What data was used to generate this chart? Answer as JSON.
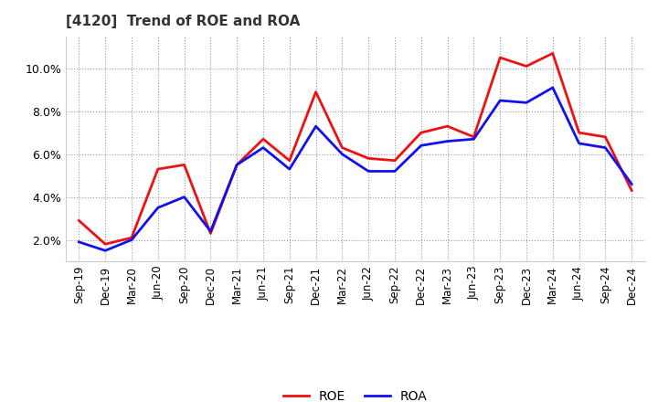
{
  "title": "[4120]  Trend of ROE and ROA",
  "labels": [
    "Sep-19",
    "Dec-19",
    "Mar-20",
    "Jun-20",
    "Sep-20",
    "Dec-20",
    "Mar-21",
    "Jun-21",
    "Sep-21",
    "Dec-21",
    "Mar-22",
    "Jun-22",
    "Sep-22",
    "Dec-22",
    "Mar-23",
    "Jun-23",
    "Sep-23",
    "Dec-23",
    "Mar-24",
    "Jun-24",
    "Sep-24",
    "Dec-24"
  ],
  "ROE": [
    2.9,
    1.8,
    2.1,
    5.3,
    5.5,
    2.3,
    5.5,
    6.7,
    5.7,
    8.9,
    6.3,
    5.8,
    5.7,
    7.0,
    7.3,
    6.8,
    10.5,
    10.1,
    10.7,
    7.0,
    6.8,
    4.3
  ],
  "ROA": [
    1.9,
    1.5,
    2.0,
    3.5,
    4.0,
    2.4,
    5.5,
    6.3,
    5.3,
    7.3,
    6.0,
    5.2,
    5.2,
    6.4,
    6.6,
    6.7,
    8.5,
    8.4,
    9.1,
    6.5,
    6.3,
    4.6
  ],
  "roe_color": "#ee1111",
  "roa_color": "#1111ee",
  "line_width": 2.0,
  "ylim": [
    1.0,
    11.5
  ],
  "yticks": [
    2.0,
    4.0,
    6.0,
    8.0,
    10.0
  ],
  "background_color": "#ffffff",
  "grid_color": "#999999"
}
